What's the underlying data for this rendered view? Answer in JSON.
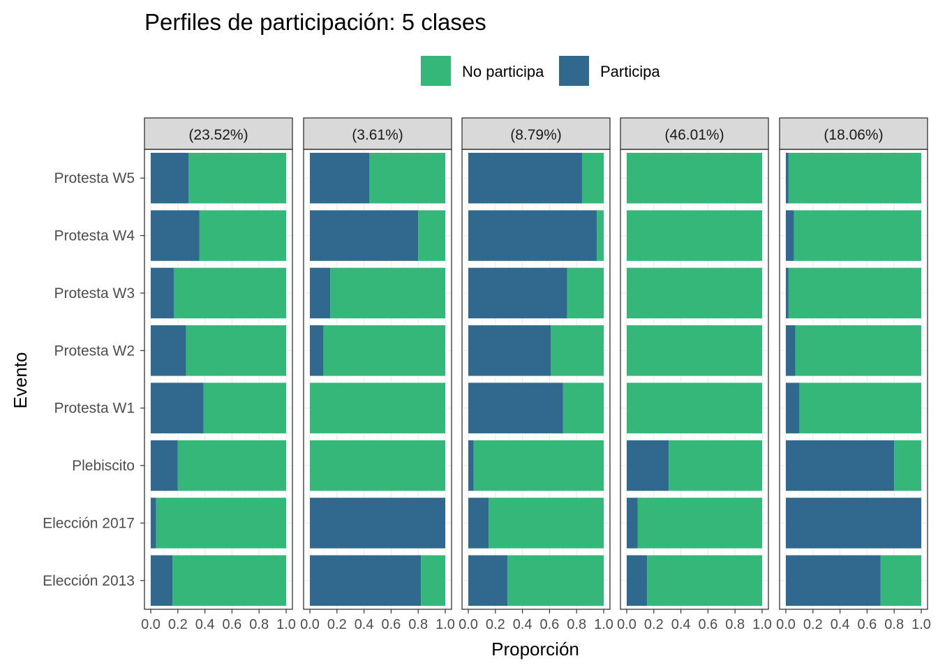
{
  "chart_data": {
    "type": "bar",
    "orientation": "horizontal",
    "stacked": true,
    "title": "Perfiles de participación: 5 clases",
    "xlabel": "Proporción",
    "ylabel": "Evento",
    "xlim": [
      0,
      1
    ],
    "x_ticks": [
      "0.0",
      "0.2",
      "0.4",
      "0.6",
      "0.8",
      "1.0"
    ],
    "grid": true,
    "legend_position": "top",
    "legend": [
      {
        "key": "no",
        "label": "No participa",
        "color": "#35b779"
      },
      {
        "key": "si",
        "label": "Participa",
        "color": "#31688e"
      }
    ],
    "categories": [
      "Protesta W5",
      "Protesta W4",
      "Protesta W3",
      "Protesta W2",
      "Protesta W1",
      "Plebiscito",
      "Elección 2017",
      "Elección 2013"
    ],
    "panels": [
      {
        "label": "(23.52%)",
        "participa": [
          0.28,
          0.36,
          0.17,
          0.26,
          0.39,
          0.2,
          0.04,
          0.16
        ]
      },
      {
        "label": "(3.61%)",
        "participa": [
          0.44,
          0.8,
          0.15,
          0.1,
          0.0,
          0.0,
          1.0,
          0.82
        ]
      },
      {
        "label": "(8.79%)",
        "participa": [
          0.84,
          0.95,
          0.73,
          0.61,
          0.7,
          0.04,
          0.15,
          0.29
        ]
      },
      {
        "label": "(46.01%)",
        "participa": [
          0.0,
          0.0,
          0.0,
          0.0,
          0.0,
          0.31,
          0.08,
          0.15
        ]
      },
      {
        "label": "(18.06%)",
        "participa": [
          0.02,
          0.06,
          0.02,
          0.07,
          0.1,
          0.8,
          1.0,
          0.7
        ]
      }
    ]
  }
}
